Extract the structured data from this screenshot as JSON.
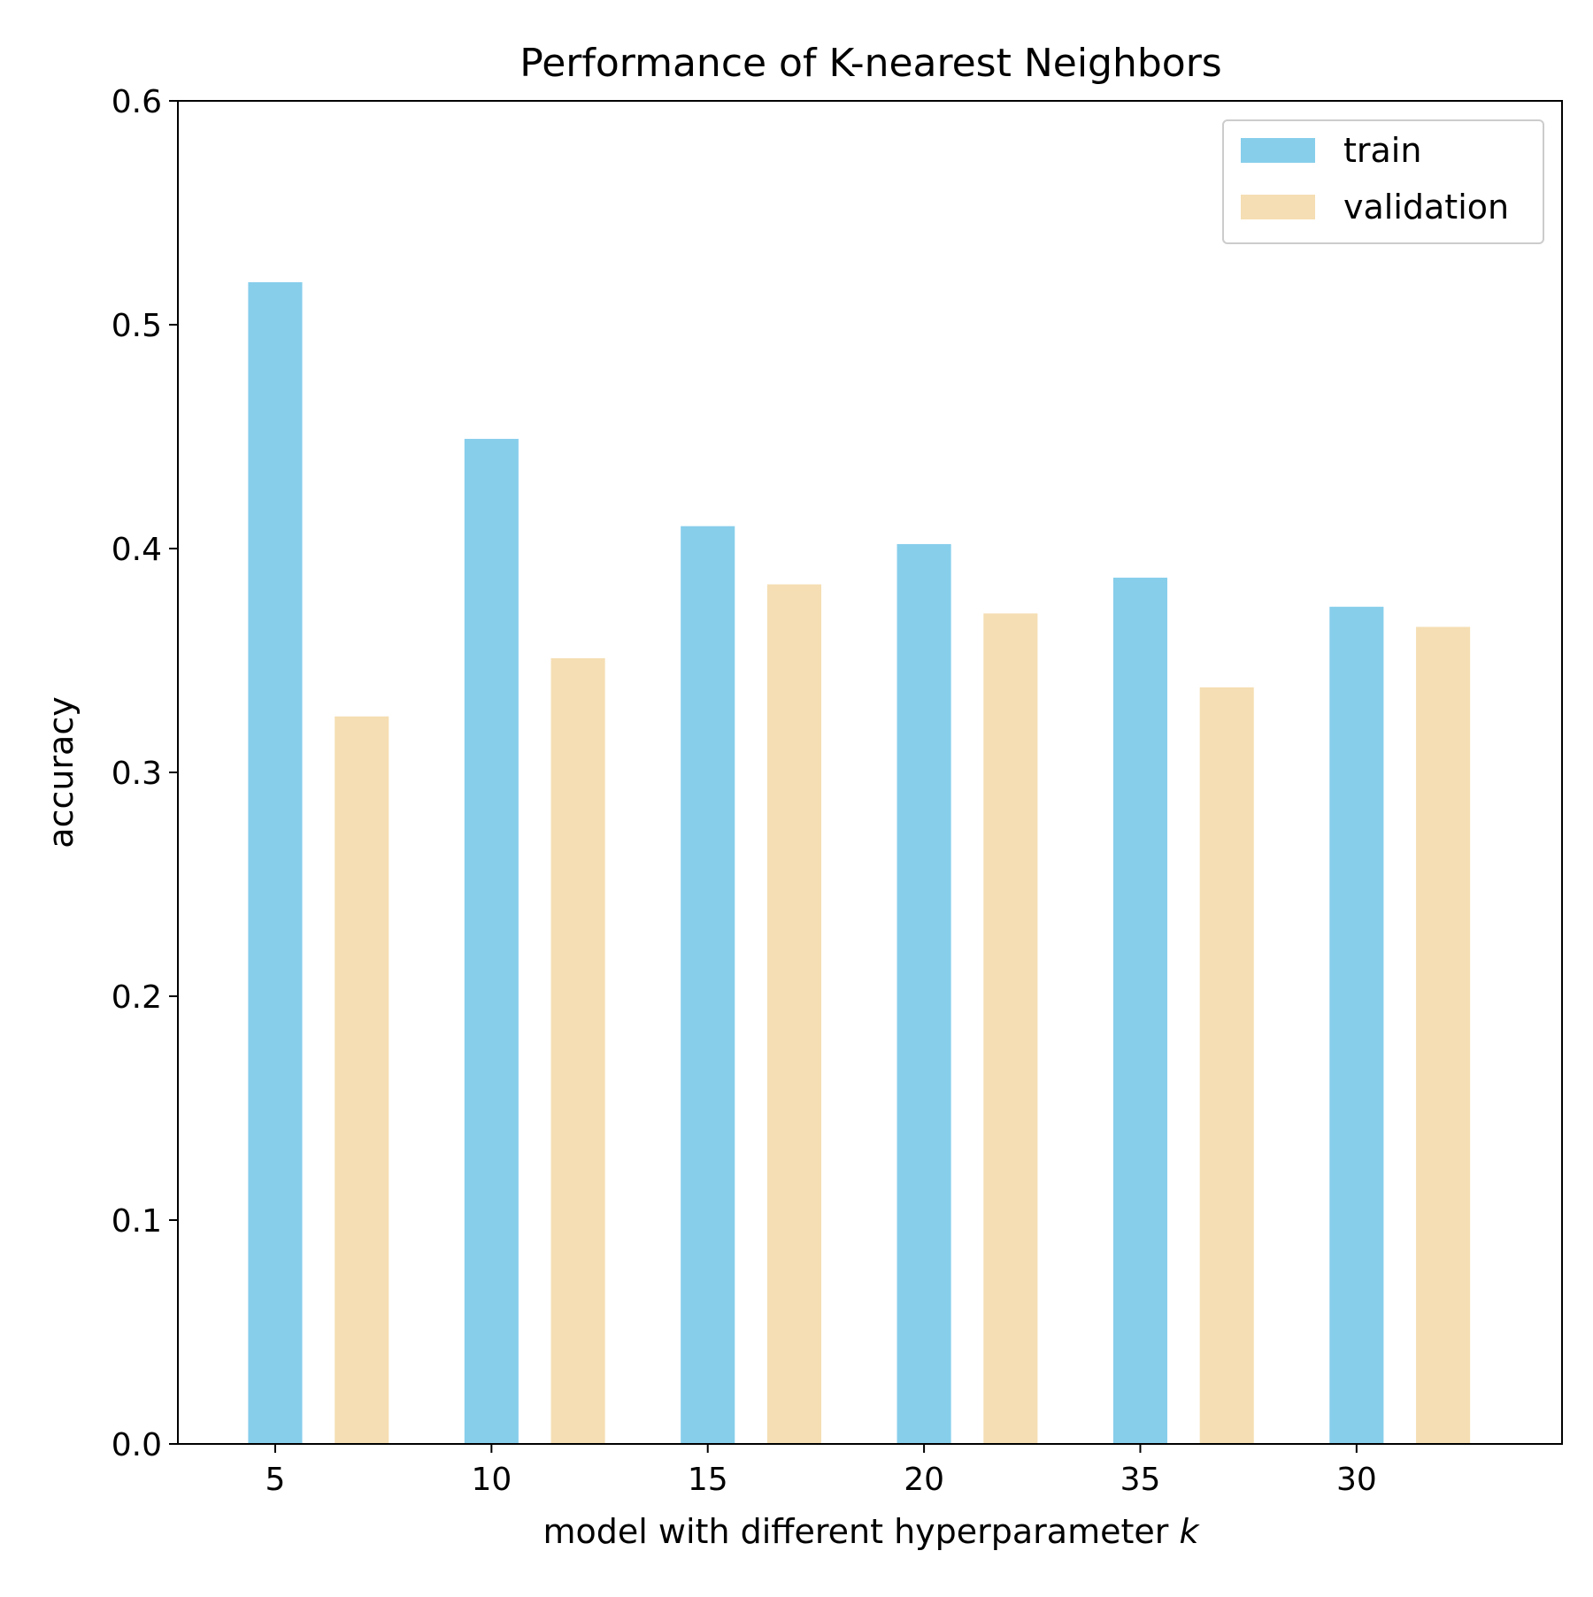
{
  "chart_data": {
    "type": "bar",
    "title": "Performance of K-nearest Neighbors",
    "xlabel_prefix": "model with different hyperparameter ",
    "xlabel_var": "k",
    "ylabel": "accuracy",
    "categories": [
      "5",
      "10",
      "15",
      "20",
      "35",
      "30"
    ],
    "series": [
      {
        "name": "train",
        "color": "#87ceeb",
        "values": [
          0.519,
          0.449,
          0.41,
          0.402,
          0.387,
          0.374
        ]
      },
      {
        "name": "validation",
        "color": "#f5deb3",
        "values": [
          0.325,
          0.351,
          0.384,
          0.371,
          0.338,
          0.365
        ]
      }
    ],
    "ylim": [
      0.0,
      0.6
    ],
    "yticks": [
      "0.0",
      "0.1",
      "0.2",
      "0.3",
      "0.4",
      "0.5",
      "0.6"
    ],
    "grid": false,
    "legend_position": "top-right"
  }
}
